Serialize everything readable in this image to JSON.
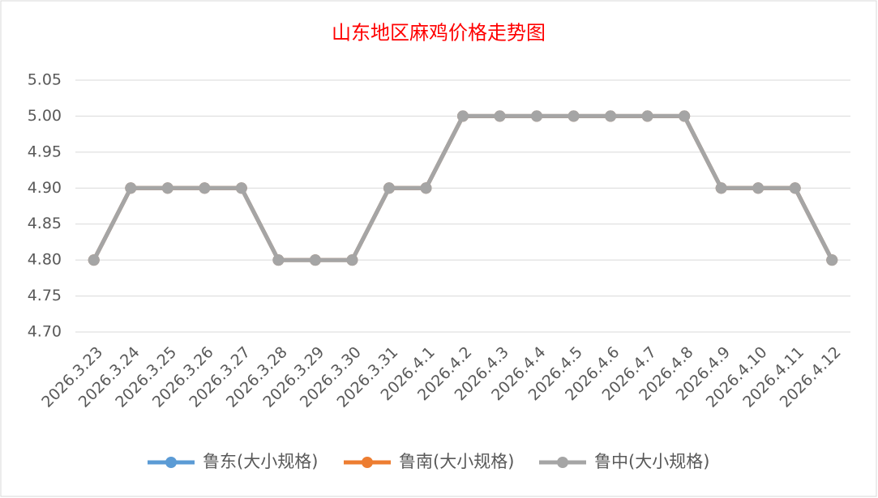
{
  "chart_data": {
    "type": "line",
    "title": "山东地区麻鸡价格走势图",
    "categories": [
      "2026.3.23",
      "2026.3.24",
      "2026.3.25",
      "2026.3.26",
      "2026.3.27",
      "2026.3.28",
      "2026.3.29",
      "2026.3.30",
      "2026.3.31",
      "2026.4.1",
      "2026.4.2",
      "2026.4.3",
      "2026.4.4",
      "2026.4.5",
      "2026.4.6",
      "2026.4.7",
      "2026.4.8",
      "2026.4.9",
      "2026.4.10",
      "2026.4.11",
      "2026.4.12"
    ],
    "series": [
      {
        "name": "鲁东(大小规格)",
        "color": "#5b9bd5",
        "values": [
          4.8,
          4.9,
          4.9,
          4.9,
          4.9,
          4.8,
          4.8,
          4.8,
          4.9,
          4.9,
          5.0,
          5.0,
          5.0,
          5.0,
          5.0,
          5.0,
          5.0,
          4.9,
          4.9,
          4.9,
          4.8
        ]
      },
      {
        "name": "鲁南(大小规格)",
        "color": "#ed7d31",
        "values": [
          4.8,
          4.9,
          4.9,
          4.9,
          4.9,
          4.8,
          4.8,
          4.8,
          4.9,
          4.9,
          5.0,
          5.0,
          5.0,
          5.0,
          5.0,
          5.0,
          5.0,
          4.9,
          4.9,
          4.9,
          4.8
        ]
      },
      {
        "name": "鲁中(大小规格)",
        "color": "#a5a5a5",
        "values": [
          4.8,
          4.9,
          4.9,
          4.9,
          4.9,
          4.8,
          4.8,
          4.8,
          4.9,
          4.9,
          5.0,
          5.0,
          5.0,
          5.0,
          5.0,
          5.0,
          5.0,
          4.9,
          4.9,
          4.9,
          4.8
        ]
      }
    ],
    "ylim": [
      4.7,
      5.05
    ],
    "yticks": [
      {
        "value": 4.7,
        "label": "4.70"
      },
      4.75,
      {
        "value": 4.8,
        "label": "4.80"
      },
      4.85,
      {
        "value": 4.9,
        "label": "4.90"
      },
      4.95,
      {
        "value": 5.0,
        "label": "5.00"
      },
      5.05
    ],
    "grid": true,
    "legend": "bottom"
  }
}
